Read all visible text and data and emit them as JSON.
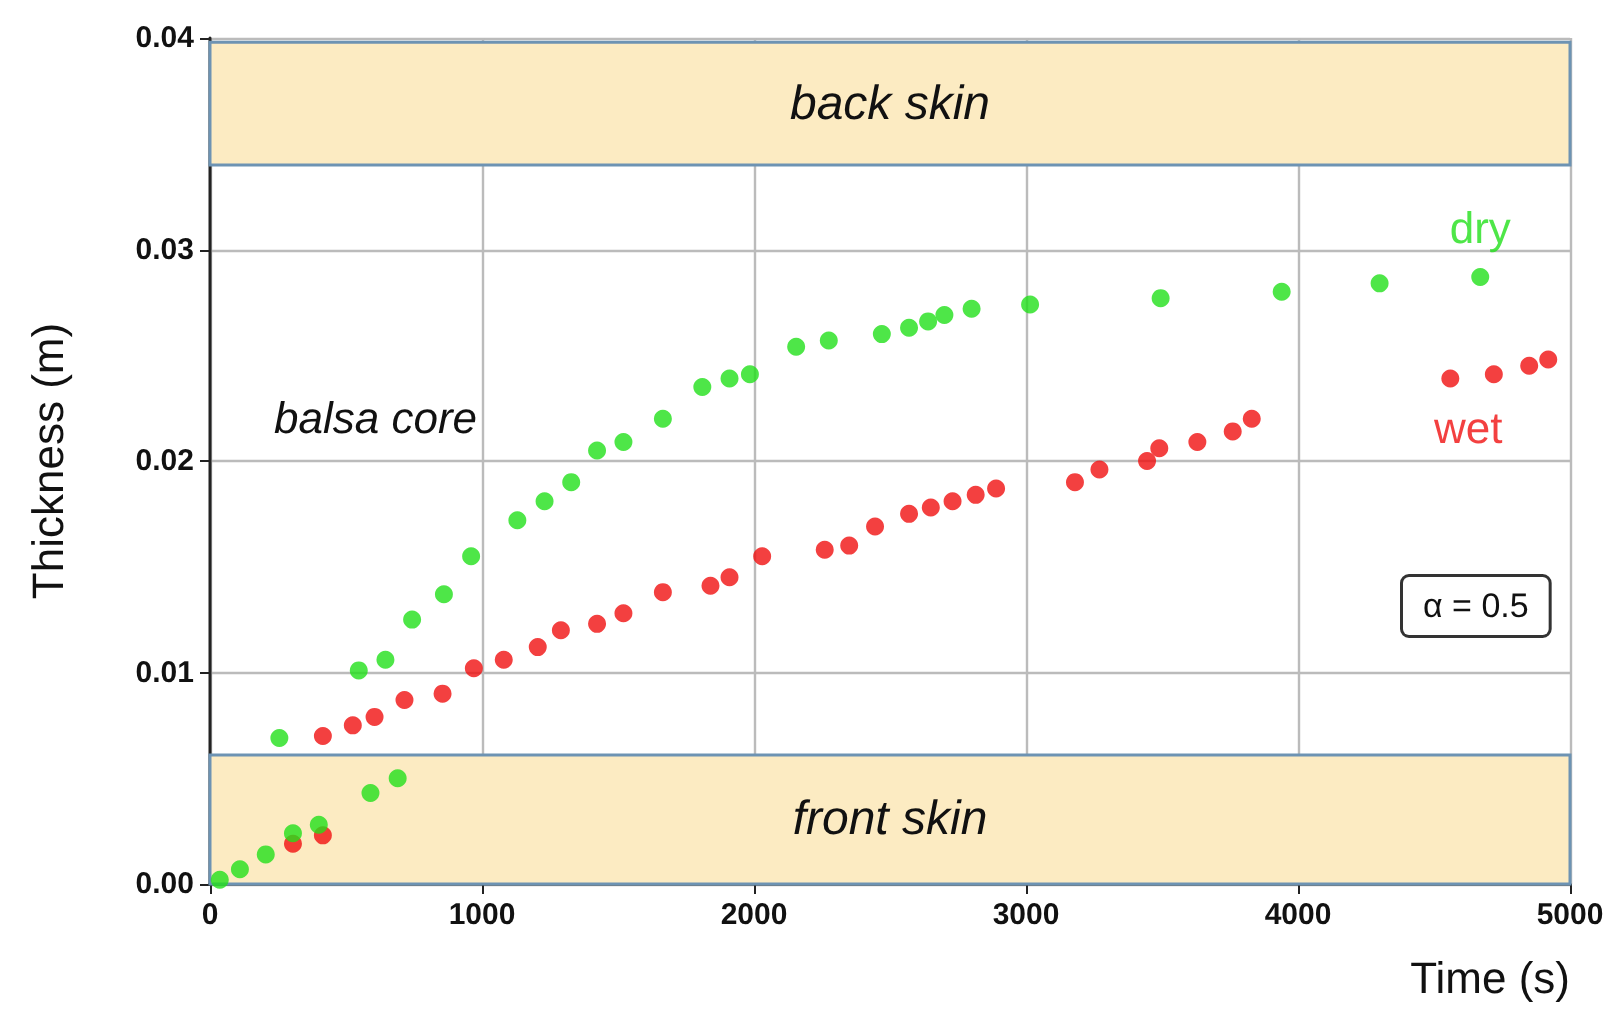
{
  "chart_data": {
    "type": "scatter",
    "xlabel": "Time (s)",
    "ylabel": "Thickness (m)",
    "annotations": [
      "balsa core",
      "α = 0.5"
    ],
    "xlim": [
      0,
      5000
    ],
    "xticks": [
      0,
      1000,
      2000,
      3000,
      4000,
      5000
    ],
    "ylim": [
      0,
      0.04
    ],
    "yticks": [
      {
        "value": 0,
        "label": "0.00"
      },
      {
        "value": 0.01,
        "label": "0.01"
      },
      {
        "value": 0.02,
        "label": "0.02"
      },
      {
        "value": 0.03,
        "label": "0.03"
      },
      {
        "value": 0.04,
        "label": "0.04"
      }
    ],
    "grid": true,
    "legend": false,
    "marker": "circle",
    "bands": [
      {
        "axis": "y",
        "from": 0.034,
        "to": 0.0398,
        "label": "back skin",
        "color": "#fcebc2"
      },
      {
        "axis": "y",
        "from": 0,
        "to": 0.0061,
        "label": "front skin",
        "color": "#fcebc2"
      }
    ],
    "series": [
      {
        "name": "dry",
        "color": "#22e01a",
        "x": [
          36,
          110,
          205,
          305,
          400,
          590,
          690,
          255,
          547,
          645,
          743,
          860,
          960,
          1130,
          1230,
          1328,
          1423,
          1520,
          1665,
          1810,
          1910,
          1985,
          2155,
          2275,
          2470,
          2570,
          2640,
          2700,
          2800,
          3015,
          3495,
          3940,
          4300,
          4670
        ],
        "values": [
          0.0002,
          0.0007,
          0.0014,
          0.0024,
          0.0028,
          0.0043,
          0.005,
          0.0069,
          0.0101,
          0.0106,
          0.0125,
          0.0137,
          0.0155,
          0.0172,
          0.0181,
          0.019,
          0.0205,
          0.0209,
          0.022,
          0.0235,
          0.0239,
          0.0241,
          0.0254,
          0.0257,
          0.026,
          0.0263,
          0.0266,
          0.0269,
          0.0272,
          0.0274,
          0.0277,
          0.028,
          0.0284,
          0.0287
        ]
      },
      {
        "name": "wet",
        "color": "#f01010",
        "x": [
          305,
          415,
          415,
          525,
          605,
          715,
          855,
          970,
          1080,
          1205,
          1290,
          1423,
          1520,
          1665,
          1840,
          1910,
          2030,
          2260,
          2350,
          2445,
          2570,
          2650,
          2730,
          2815,
          2890,
          3180,
          3270,
          3445,
          3490,
          3630,
          3760,
          3830,
          4560,
          4720,
          4850,
          4920
        ],
        "values": [
          0.0019,
          0.0023,
          0.007,
          0.0075,
          0.0079,
          0.0087,
          0.009,
          0.0102,
          0.0106,
          0.0112,
          0.012,
          0.0123,
          0.0128,
          0.0138,
          0.0141,
          0.0145,
          0.0155,
          0.0158,
          0.016,
          0.0169,
          0.0175,
          0.0178,
          0.0181,
          0.0184,
          0.0187,
          0.019,
          0.0196,
          0.02,
          0.0206,
          0.0209,
          0.0214,
          0.022,
          0.0239,
          0.0241,
          0.0245,
          0.0248
        ]
      }
    ]
  }
}
